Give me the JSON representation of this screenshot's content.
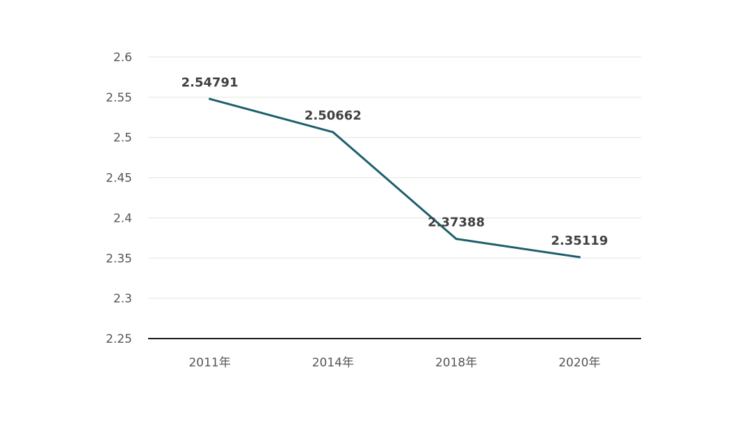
{
  "chart_data": {
    "type": "line",
    "categories": [
      "2011年",
      "2014年",
      "2018年",
      "2020年"
    ],
    "series": [
      {
        "values": [
          2.54791,
          2.50662,
          2.37388,
          2.35119
        ],
        "color": "#1d5f6c"
      }
    ],
    "data_labels": [
      "2.54791",
      "2.50662",
      "2.37388",
      "2.35119"
    ],
    "yticks": [
      "2.25",
      "2.3",
      "2.35",
      "2.4",
      "2.45",
      "2.5",
      "2.55",
      "2.6"
    ],
    "ylim": [
      2.25,
      2.6
    ],
    "grid": true,
    "legend": "none",
    "title": "",
    "xlabel": "",
    "ylabel": ""
  }
}
